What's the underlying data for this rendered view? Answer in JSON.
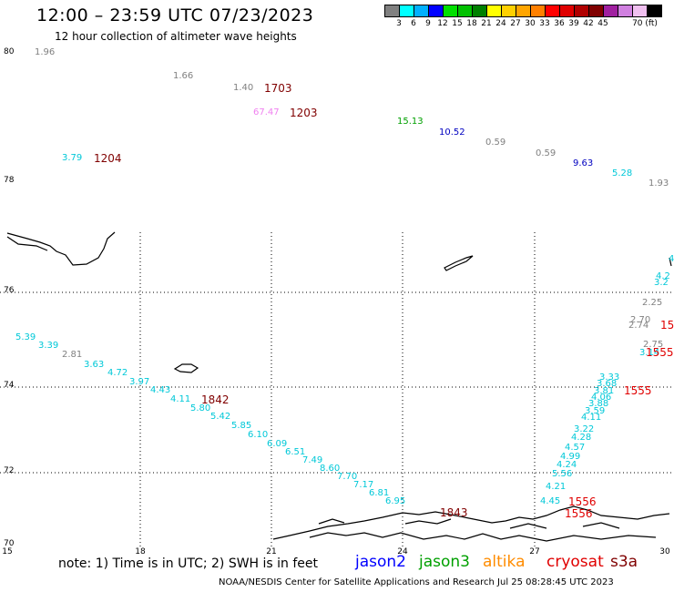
{
  "title": "12:00 – 23:59 UTC 07/23/2023",
  "subtitle": "12 hour collection of altimeter wave heights",
  "scale": {
    "colors": [
      "#808080",
      "#00ffff",
      "#00b0ff",
      "#0000ff",
      "#00e000",
      "#00c000",
      "#008000",
      "#ffff00",
      "#ffd000",
      "#ffa500",
      "#ff8000",
      "#ff0000",
      "#e00000",
      "#b00000",
      "#800000",
      "#a020a0",
      "#d080e0",
      "#f0c0f0",
      "#000000"
    ],
    "labels": [
      "3",
      "6",
      "9",
      "12",
      "15",
      "18",
      "21",
      "24",
      "27",
      "30",
      "33",
      "36",
      "39",
      "42",
      "45",
      "70 (ft)"
    ]
  },
  "axes": {
    "y_labels": [
      "80",
      "78",
      "76",
      "74",
      "72",
      "70"
    ],
    "x_labels": [
      "15",
      "18",
      "21",
      "24",
      "27",
      "30"
    ]
  },
  "observations": [
    {
      "text": "1.96",
      "color": "#808080"
    },
    {
      "text": "1.66",
      "color": "#808080"
    },
    {
      "text": "1.40",
      "color": "#808080"
    },
    {
      "text": "1703",
      "color": "#800000"
    },
    {
      "text": "67.47",
      "color": "#f080f0"
    },
    {
      "text": "1203",
      "color": "#800000"
    },
    {
      "text": "15.13",
      "color": "#00a000"
    },
    {
      "text": "10.52",
      "color": "#0000c0"
    },
    {
      "text": "0.59",
      "color": "#808080"
    },
    {
      "text": "0.59",
      "color": "#808080"
    },
    {
      "text": "9.63",
      "color": "#0000c0"
    },
    {
      "text": "5.28",
      "color": "#00c8d8"
    },
    {
      "text": "1.93",
      "color": "#808080"
    },
    {
      "text": "3.79",
      "color": "#00c8d8"
    },
    {
      "text": "1204",
      "color": "#800000"
    },
    {
      "text": "5.39",
      "color": "#00c8d8"
    },
    {
      "text": "3.39",
      "color": "#00c8d8"
    },
    {
      "text": "2.81",
      "color": "#808080"
    },
    {
      "text": "3.63",
      "color": "#00c8d8"
    },
    {
      "text": "4.72",
      "color": "#00c8d8"
    },
    {
      "text": "3.97",
      "color": "#00c8d8"
    },
    {
      "text": "4.43",
      "color": "#00c8d8"
    },
    {
      "text": "4.11",
      "color": "#00c8d8"
    },
    {
      "text": "1842",
      "color": "#800000"
    },
    {
      "text": "5.80",
      "color": "#00c8d8"
    },
    {
      "text": "5.42",
      "color": "#00c8d8"
    },
    {
      "text": "5.85",
      "color": "#00c8d8"
    },
    {
      "text": "6.10",
      "color": "#00c8d8"
    },
    {
      "text": "6.09",
      "color": "#00c8d8"
    },
    {
      "text": "6.51",
      "color": "#00c8d8"
    },
    {
      "text": "7.49",
      "color": "#00c8d8"
    },
    {
      "text": "8.60",
      "color": "#00c8d8"
    },
    {
      "text": "7.70",
      "color": "#00c8d8"
    },
    {
      "text": "7.17",
      "color": "#00c8d8"
    },
    {
      "text": "6.81",
      "color": "#00c8d8"
    },
    {
      "text": "6.95",
      "color": "#00c8d8"
    },
    {
      "text": "1843",
      "color": "#800000"
    },
    {
      "text": "2.25",
      "color": "#808080"
    },
    {
      "text": "2.70",
      "color": "#808080"
    },
    {
      "text": "2.74",
      "color": "#808080"
    },
    {
      "text": "15",
      "color": "#e00000"
    },
    {
      "text": "2.75",
      "color": "#808080"
    },
    {
      "text": "3.14",
      "color": "#00c8d8"
    },
    {
      "text": "1555",
      "color": "#e00000"
    },
    {
      "text": "3.33",
      "color": "#00c8d8"
    },
    {
      "text": "3.68",
      "color": "#00c8d8"
    },
    {
      "text": "3.81",
      "color": "#00c8d8"
    },
    {
      "text": "4.06",
      "color": "#00c8d8"
    },
    {
      "text": "3.88",
      "color": "#00c8d8"
    },
    {
      "text": "3.59",
      "color": "#00c8d8"
    },
    {
      "text": "4.11",
      "color": "#00c8d8"
    },
    {
      "text": "1555",
      "color": "#e00000"
    },
    {
      "text": "3.22",
      "color": "#00c8d8"
    },
    {
      "text": "4.28",
      "color": "#00c8d8"
    },
    {
      "text": "4.57",
      "color": "#00c8d8"
    },
    {
      "text": "4.99",
      "color": "#00c8d8"
    },
    {
      "text": "4.24",
      "color": "#00c8d8"
    },
    {
      "text": "5.56",
      "color": "#00c8d8"
    },
    {
      "text": "4.21",
      "color": "#00c8d8"
    },
    {
      "text": "4.45",
      "color": "#00c8d8"
    },
    {
      "text": "1556",
      "color": "#e00000"
    },
    {
      "text": "1556",
      "color": "#e00000"
    },
    {
      "text": "4",
      "color": "#00c8d8"
    },
    {
      "text": "4.2",
      "color": "#00c8d8"
    },
    {
      "text": "3.2",
      "color": "#00c8d8"
    }
  ],
  "note": "note:  1) Time is in UTC;  2) SWH is in feet",
  "satellites": [
    {
      "name": "jason2",
      "color": "#0000ff"
    },
    {
      "name": "jason3",
      "color": "#00a000"
    },
    {
      "name": "altika",
      "color": "#ff8c00"
    },
    {
      "name": "cryosat",
      "color": "#e00000"
    },
    {
      "name": "s3a",
      "color": "#800000"
    }
  ],
  "footer": "NOAA/NESDIS Center for Satellite Applications and Research     Jul 25 08:28:45 UTC 2023"
}
